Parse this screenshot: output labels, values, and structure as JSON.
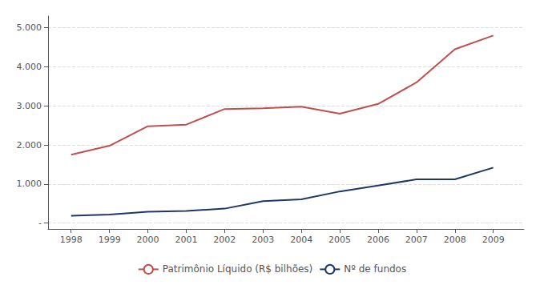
{
  "chart_data": {
    "type": "line",
    "x": [
      1998,
      1999,
      2000,
      2001,
      2002,
      2003,
      2004,
      2005,
      2006,
      2007,
      2008,
      2009
    ],
    "series": [
      {
        "name": "Patrimônio Líquido (R$ bilhões)",
        "color": "#C0504D",
        "values": [
          1750,
          1980,
          2480,
          2520,
          2920,
          2940,
          2980,
          2800,
          3050,
          3600,
          4450,
          4800
        ]
      },
      {
        "name": "Nº de fundos",
        "color": "#1F3864",
        "values": [
          190,
          220,
          290,
          310,
          370,
          560,
          610,
          810,
          960,
          1120,
          1120,
          1420
        ]
      }
    ],
    "xlim": [
      1997.4,
      2009.8
    ],
    "xticks": [
      1998,
      1999,
      2000,
      2001,
      2002,
      2003,
      2004,
      2005,
      2006,
      2007,
      2008,
      2009
    ],
    "ylim": [
      -150,
      5300
    ],
    "yticks": [
      {
        "value": 0,
        "label": "-"
      },
      {
        "value": 1000,
        "label": "1.000"
      },
      {
        "value": 2000,
        "label": "2.000"
      },
      {
        "value": 3000,
        "label": "3.000"
      },
      {
        "value": 4000,
        "label": "4.000"
      },
      {
        "value": 5000,
        "label": "5.000"
      }
    ],
    "grid": true,
    "legend": "bottom"
  }
}
